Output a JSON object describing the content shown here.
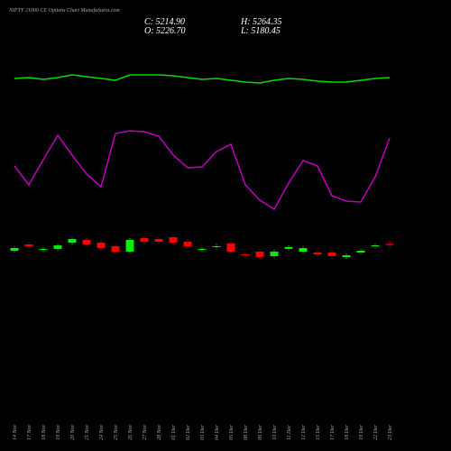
{
  "chart_data": {
    "type": "candlestick",
    "title": "NIFTY 21000 CE Options Chart MunafaSutra.com",
    "annotations": [
      "C: 5214.90",
      "H: 5264.35",
      "O: 5226.70",
      "L: 5180.45"
    ],
    "categories": [
      "14 Nov",
      "17 Nov",
      "18 Nov",
      "19 Nov",
      "20 Nov",
      "21 Nov",
      "24 Nov",
      "25 Nov",
      "26 Nov",
      "27 Nov",
      "28 Nov",
      "01 Dec",
      "02 Dec",
      "03 Dec",
      "04 Dec",
      "05 Dec",
      "08 Dec",
      "09 Dec",
      "10 Dec",
      "11 Dec",
      "12 Dec",
      "15 Dec",
      "17 Dec",
      "18 Dec",
      "19 Dec",
      "22 Dec",
      "23 Dec"
    ],
    "open": [
      5150,
      5220,
      5160,
      5170,
      5240,
      5270,
      5240,
      5200,
      5140,
      5290,
      5280,
      5300,
      5250,
      5160,
      5190,
      5230,
      5110,
      5140,
      5090,
      5170,
      5140,
      5130,
      5130,
      5080,
      5130,
      5200,
      5226.7
    ],
    "high": [
      5200,
      5240,
      5190,
      5230,
      5300,
      5290,
      5260,
      5220,
      5290,
      5310,
      5300,
      5320,
      5270,
      5190,
      5230,
      5250,
      5130,
      5160,
      5160,
      5210,
      5200,
      5150,
      5150,
      5120,
      5170,
      5230,
      5264.35
    ],
    "low": [
      5130,
      5180,
      5140,
      5150,
      5220,
      5200,
      5160,
      5120,
      5120,
      5230,
      5230,
      5220,
      5180,
      5140,
      5170,
      5120,
      5080,
      5060,
      5070,
      5150,
      5120,
      5090,
      5070,
      5060,
      5110,
      5190,
      5180.45
    ],
    "close": [
      5180,
      5200,
      5170,
      5210,
      5280,
      5220,
      5180,
      5140,
      5270,
      5250,
      5250,
      5240,
      5200,
      5170,
      5200,
      5140,
      5100,
      5080,
      5140,
      5190,
      5180,
      5110,
      5090,
      5100,
      5150,
      5210,
      5214.9
    ],
    "up_color": "#00ee00",
    "down_color": "#ff0000",
    "ylim": [
      4830,
      5550
    ],
    "lines": [
      {
        "color": "#00dd00",
        "ylim": [
          0,
          20
        ],
        "values": [
          13,
          14,
          12,
          14,
          17,
          15,
          13,
          11,
          17,
          17,
          17,
          16,
          14,
          12,
          13,
          11,
          9,
          8,
          11,
          13,
          12,
          10,
          9,
          9,
          11,
          13,
          14
        ]
      },
      {
        "color": "#c000c0",
        "ylim": [
          0,
          120
        ],
        "values": [
          76,
          55,
          83,
          110,
          88,
          67,
          53,
          112,
          115,
          114,
          109,
          88,
          74,
          75,
          92,
          100,
          55,
          38,
          28,
          57,
          82,
          76,
          43,
          37,
          36,
          64,
          107
        ]
      }
    ]
  }
}
